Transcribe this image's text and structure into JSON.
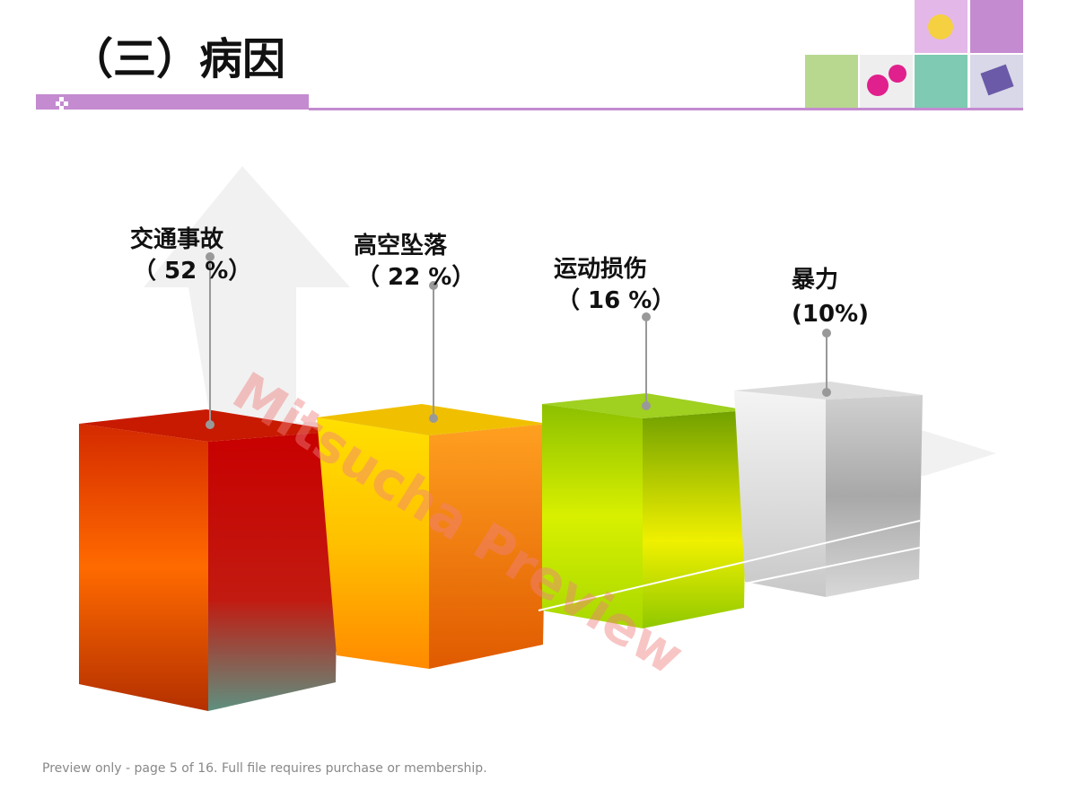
{
  "header": {
    "title": "（三）病因"
  },
  "items": [
    {
      "name": "交通事故",
      "percent": "（ 52 %）"
    },
    {
      "name": "高空坠落",
      "percent": "（ 22 %）"
    },
    {
      "name": "运动损伤",
      "percent": "（ 16 %）"
    },
    {
      "name": "暴力",
      "percent": "(10%)"
    }
  ],
  "watermark": "Mitsucha Preview",
  "footer": "Preview only - page 5 of 16. Full file requires purchase or membership."
}
